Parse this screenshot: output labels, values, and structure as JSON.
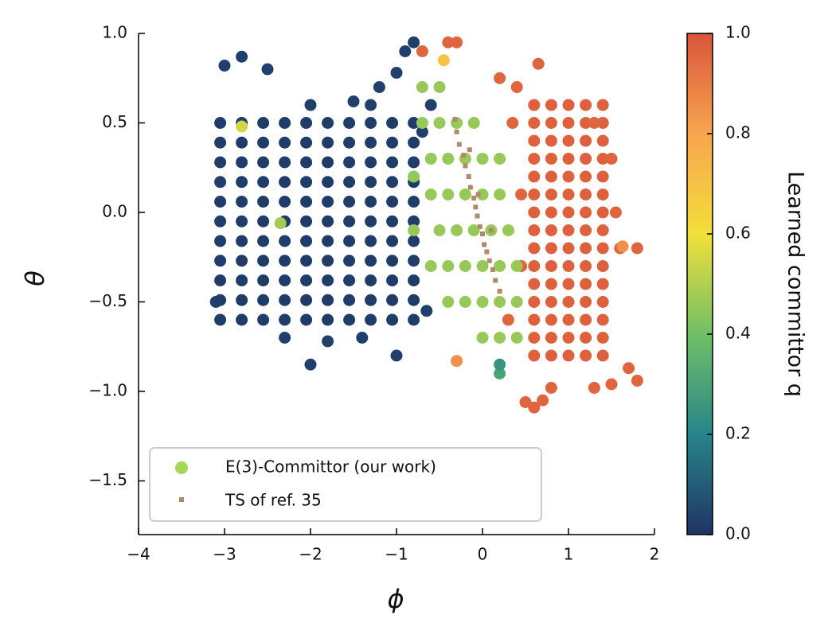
{
  "chart_data": {
    "type": "scatter",
    "x_label": "ϕ",
    "y_label": "θ",
    "colorbar_label": "Learned committor q",
    "xlim": [
      -4,
      2
    ],
    "ylim": [
      -1.8,
      1.0
    ],
    "clim": [
      0,
      1
    ],
    "xticks": [
      {
        "value": -4,
        "label": "−4"
      },
      {
        "value": -3,
        "label": "−3"
      },
      {
        "value": -2,
        "label": "−2"
      },
      {
        "value": -1,
        "label": "−1"
      },
      0,
      1,
      2
    ],
    "yticks": [
      {
        "value": -1.5,
        "label": "−1.5"
      },
      {
        "value": -1.0,
        "label": "−1.0"
      },
      {
        "value": -0.5,
        "label": "−0.5"
      },
      {
        "value": 0.0,
        "label": "0.0"
      },
      {
        "value": 0.5,
        "label": "0.5"
      },
      {
        "value": 1.0,
        "label": "1.0"
      }
    ],
    "cticks": [
      {
        "value": 0.0,
        "label": "0.0"
      },
      {
        "value": 0.2,
        "label": "0.2"
      },
      {
        "value": 0.4,
        "label": "0.4"
      },
      {
        "value": 0.6,
        "label": "0.6"
      },
      {
        "value": 0.8,
        "label": "0.8"
      },
      {
        "value": 1.0,
        "label": "1.0"
      }
    ],
    "colormap": [
      "#1f3465",
      "#27858a",
      "#6fc065",
      "#f2df3a",
      "#f8a54e",
      "#d9553b"
    ],
    "legend": "lower left",
    "series": [
      {
        "name": "E(3)-Committor (our work)",
        "color": "#a5d75a",
        "marker": "circle",
        "x": [
          -3.05,
          -2.8,
          -2.55,
          -2.3,
          -2.05,
          -1.8,
          -1.55,
          -1.3,
          -1.05,
          -0.8,
          -3.05,
          -2.8,
          -2.55,
          -2.3,
          -2.05,
          -1.8,
          -1.55,
          -1.3,
          -1.05,
          -0.8,
          -3.05,
          -2.8,
          -2.55,
          -2.3,
          -2.05,
          -1.8,
          -1.55,
          -1.3,
          -1.05,
          -0.8,
          -3.05,
          -2.8,
          -2.55,
          -2.3,
          -2.05,
          -1.8,
          -1.55,
          -1.3,
          -1.05,
          -0.8,
          -3.05,
          -2.8,
          -2.55,
          -2.3,
          -2.05,
          -1.8,
          -1.55,
          -1.3,
          -1.05,
          -0.8,
          -3.05,
          -2.8,
          -2.55,
          -2.3,
          -2.05,
          -1.8,
          -1.55,
          -1.3,
          -1.05,
          -0.8,
          -3.05,
          -2.8,
          -2.55,
          -2.3,
          -2.05,
          -1.8,
          -1.55,
          -1.3,
          -1.05,
          -0.8,
          -3.05,
          -2.8,
          -2.55,
          -2.3,
          -2.05,
          -1.8,
          -1.55,
          -1.3,
          -1.05,
          -0.8,
          -3.05,
          -2.8,
          -2.55,
          -2.3,
          -2.05,
          -1.8,
          -1.55,
          -1.3,
          -1.05,
          -0.8,
          -3.05,
          -2.8,
          -2.55,
          -2.3,
          -2.05,
          -1.8,
          -1.55,
          -1.3,
          -1.05,
          -0.8,
          -3.05,
          -2.8,
          -2.55,
          -2.3,
          -2.05,
          -1.8,
          -1.55,
          -1.3,
          -1.05,
          -0.8,
          -1.5,
          -1.2,
          -1.0,
          -0.9,
          -0.8,
          -1.3,
          -2.0,
          -2.3,
          -1.8,
          -1.4,
          -1.0,
          -3.1,
          -3.0,
          -2.8,
          -2.5,
          -2.0,
          -0.6,
          -0.7,
          -0.65,
          0.6,
          0.8,
          1.0,
          1.2,
          1.4,
          0.6,
          0.8,
          1.0,
          1.2,
          1.4,
          0.6,
          0.8,
          1.0,
          1.2,
          1.4,
          0.6,
          0.8,
          1.0,
          1.2,
          1.4,
          0.6,
          0.8,
          1.0,
          1.2,
          1.4,
          0.6,
          0.8,
          1.0,
          1.2,
          1.4,
          0.6,
          0.8,
          1.0,
          1.2,
          1.4,
          0.6,
          0.8,
          1.0,
          1.2,
          1.4,
          0.6,
          0.8,
          1.0,
          1.2,
          1.4,
          0.6,
          0.8,
          1.0,
          1.2,
          1.4,
          0.6,
          0.8,
          1.0,
          1.2,
          1.4,
          0.6,
          0.8,
          1.0,
          1.2,
          1.4,
          0.6,
          0.8,
          1.0,
          1.2,
          1.4,
          0.6,
          0.8,
          1.0,
          1.2,
          1.4,
          0.6,
          0.8,
          1.0,
          1.2,
          1.4,
          0.35,
          0.4,
          0.2,
          0.65,
          1.3,
          1.6,
          1.8,
          1.7,
          1.8,
          1.3,
          1.5,
          0.7,
          0.6,
          0.5,
          0.8,
          0.3,
          0.45,
          0.45,
          1.55,
          1.5,
          -0.4,
          -0.3,
          -0.7,
          -0.7,
          -0.5,
          -0.7,
          -0.5,
          -0.3,
          -0.1,
          -0.6,
          -0.4,
          -0.2,
          0.0,
          0.2,
          -0.6,
          -0.4,
          -0.2,
          0.0,
          0.2,
          -0.8,
          -0.5,
          -0.3,
          -0.1,
          0.1,
          0.3,
          -0.6,
          -0.4,
          -0.2,
          0.0,
          0.2,
          0.4,
          -0.4,
          -0.2,
          0.0,
          0.2,
          0.4,
          0.0,
          0.2,
          0.4,
          -2.35,
          -2.8,
          -0.8,
          -0.3,
          1.63,
          -0.45,
          0.2,
          0.2
        ],
        "y": [
          -0.6,
          -0.6,
          -0.6,
          -0.6,
          -0.6,
          -0.6,
          -0.6,
          -0.6,
          -0.6,
          -0.6,
          -0.49,
          -0.49,
          -0.49,
          -0.49,
          -0.49,
          -0.49,
          -0.49,
          -0.49,
          -0.49,
          -0.49,
          -0.38,
          -0.38,
          -0.38,
          -0.38,
          -0.38,
          -0.38,
          -0.38,
          -0.38,
          -0.38,
          -0.38,
          -0.27,
          -0.27,
          -0.27,
          -0.27,
          -0.27,
          -0.27,
          -0.27,
          -0.27,
          -0.27,
          -0.27,
          -0.16,
          -0.16,
          -0.16,
          -0.16,
          -0.16,
          -0.16,
          -0.16,
          -0.16,
          -0.16,
          -0.16,
          -0.05,
          -0.05,
          -0.05,
          -0.05,
          -0.05,
          -0.05,
          -0.05,
          -0.05,
          -0.05,
          -0.05,
          0.06,
          0.06,
          0.06,
          0.06,
          0.06,
          0.06,
          0.06,
          0.06,
          0.06,
          0.06,
          0.17,
          0.17,
          0.17,
          0.17,
          0.17,
          0.17,
          0.17,
          0.17,
          0.17,
          0.17,
          0.28,
          0.28,
          0.28,
          0.28,
          0.28,
          0.28,
          0.28,
          0.28,
          0.28,
          0.28,
          0.39,
          0.39,
          0.39,
          0.39,
          0.39,
          0.39,
          0.39,
          0.39,
          0.39,
          0.39,
          0.5,
          0.5,
          0.5,
          0.5,
          0.5,
          0.5,
          0.5,
          0.5,
          0.5,
          0.5,
          0.62,
          0.7,
          0.78,
          0.9,
          0.95,
          0.6,
          0.6,
          -0.7,
          -0.72,
          -0.7,
          -0.8,
          -0.5,
          0.82,
          0.87,
          0.8,
          -0.85,
          0.6,
          0.45,
          -0.55,
          -0.8,
          -0.8,
          -0.8,
          -0.8,
          -0.8,
          -0.7,
          -0.7,
          -0.7,
          -0.7,
          -0.7,
          -0.6,
          -0.6,
          -0.6,
          -0.6,
          -0.6,
          -0.5,
          -0.5,
          -0.5,
          -0.5,
          -0.5,
          -0.4,
          -0.4,
          -0.4,
          -0.4,
          -0.4,
          -0.3,
          -0.3,
          -0.3,
          -0.3,
          -0.3,
          -0.2,
          -0.2,
          -0.2,
          -0.2,
          -0.2,
          -0.1,
          -0.1,
          -0.1,
          -0.1,
          -0.1,
          0.0,
          0.0,
          0.0,
          0.0,
          0.0,
          0.1,
          0.1,
          0.1,
          0.1,
          0.1,
          0.2,
          0.2,
          0.2,
          0.2,
          0.2,
          0.3,
          0.3,
          0.3,
          0.3,
          0.3,
          0.4,
          0.4,
          0.4,
          0.4,
          0.4,
          0.5,
          0.5,
          0.5,
          0.5,
          0.5,
          0.6,
          0.6,
          0.6,
          0.6,
          0.6,
          0.5,
          0.7,
          0.75,
          0.83,
          0.5,
          -0.2,
          -0.2,
          -0.87,
          -0.94,
          -0.98,
          -0.96,
          -1.05,
          -1.09,
          -1.06,
          -0.98,
          -0.6,
          0.1,
          -0.3,
          0.0,
          0.3,
          0.95,
          0.95,
          0.9,
          0.7,
          0.7,
          0.5,
          0.5,
          0.5,
          0.5,
          0.3,
          0.3,
          0.3,
          0.3,
          0.3,
          0.1,
          0.1,
          0.1,
          0.1,
          0.1,
          -0.1,
          -0.1,
          -0.1,
          -0.1,
          -0.1,
          -0.1,
          -0.3,
          -0.3,
          -0.3,
          -0.3,
          -0.3,
          -0.3,
          -0.5,
          -0.5,
          -0.5,
          -0.5,
          -0.5,
          -0.7,
          -0.7,
          -0.7,
          -0.06,
          0.48,
          0.2,
          -0.83,
          -0.19,
          0.85,
          -0.9,
          -0.85
        ],
        "c": [
          0.02,
          0.02,
          0.02,
          0.02,
          0.02,
          0.02,
          0.02,
          0.02,
          0.02,
          0.02,
          0.02,
          0.02,
          0.02,
          0.02,
          0.02,
          0.02,
          0.02,
          0.02,
          0.02,
          0.02,
          0.02,
          0.02,
          0.02,
          0.02,
          0.02,
          0.02,
          0.02,
          0.02,
          0.02,
          0.02,
          0.02,
          0.02,
          0.02,
          0.02,
          0.02,
          0.02,
          0.02,
          0.02,
          0.02,
          0.02,
          0.02,
          0.02,
          0.02,
          0.02,
          0.02,
          0.02,
          0.02,
          0.02,
          0.02,
          0.02,
          0.02,
          0.02,
          0.02,
          0.02,
          0.02,
          0.02,
          0.02,
          0.02,
          0.02,
          0.02,
          0.02,
          0.02,
          0.02,
          0.02,
          0.02,
          0.02,
          0.02,
          0.02,
          0.02,
          0.02,
          0.02,
          0.02,
          0.02,
          0.02,
          0.02,
          0.02,
          0.02,
          0.02,
          0.02,
          0.02,
          0.02,
          0.02,
          0.02,
          0.02,
          0.02,
          0.02,
          0.02,
          0.02,
          0.02,
          0.02,
          0.02,
          0.02,
          0.02,
          0.02,
          0.02,
          0.02,
          0.02,
          0.02,
          0.02,
          0.02,
          0.02,
          0.02,
          0.02,
          0.02,
          0.02,
          0.02,
          0.02,
          0.02,
          0.02,
          0.02,
          0.03,
          0.03,
          0.03,
          0.03,
          0.03,
          0.03,
          0.03,
          0.03,
          0.03,
          0.03,
          0.03,
          0.03,
          0.03,
          0.03,
          0.03,
          0.03,
          0.03,
          0.03,
          0.03,
          0.97,
          0.97,
          0.97,
          0.97,
          0.97,
          0.97,
          0.97,
          0.97,
          0.97,
          0.97,
          0.97,
          0.97,
          0.97,
          0.97,
          0.97,
          0.97,
          0.97,
          0.97,
          0.97,
          0.97,
          0.97,
          0.97,
          0.97,
          0.97,
          0.97,
          0.97,
          0.97,
          0.97,
          0.97,
          0.97,
          0.97,
          0.97,
          0.97,
          0.97,
          0.97,
          0.97,
          0.97,
          0.97,
          0.97,
          0.97,
          0.97,
          0.97,
          0.97,
          0.97,
          0.97,
          0.97,
          0.97,
          0.97,
          0.97,
          0.97,
          0.97,
          0.97,
          0.97,
          0.97,
          0.97,
          0.97,
          0.97,
          0.97,
          0.97,
          0.97,
          0.97,
          0.97,
          0.97,
          0.97,
          0.97,
          0.97,
          0.97,
          0.97,
          0.97,
          0.97,
          0.97,
          0.97,
          0.97,
          0.97,
          0.97,
          0.96,
          0.96,
          0.96,
          0.96,
          0.96,
          0.96,
          0.96,
          0.96,
          0.96,
          0.96,
          0.96,
          0.96,
          0.96,
          0.96,
          0.96,
          0.96,
          0.96,
          0.96,
          0.96,
          0.96,
          0.96,
          0.96,
          0.96,
          0.46,
          0.46,
          0.46,
          0.46,
          0.46,
          0.46,
          0.46,
          0.46,
          0.46,
          0.46,
          0.46,
          0.46,
          0.46,
          0.46,
          0.46,
          0.46,
          0.46,
          0.46,
          0.46,
          0.46,
          0.46,
          0.46,
          0.46,
          0.46,
          0.46,
          0.46,
          0.46,
          0.46,
          0.46,
          0.46,
          0.46,
          0.46,
          0.46,
          0.46,
          0.46,
          0.46,
          0.48,
          0.55,
          0.45,
          0.85,
          0.85,
          0.7,
          0.3,
          0.25
        ]
      },
      {
        "name": "TS of ref. 35",
        "color": "#b08968",
        "marker": "square",
        "x": [
          -0.32,
          -0.3,
          -0.27,
          -0.22,
          -0.2,
          -0.16,
          -0.14,
          -0.1,
          -0.08,
          -0.06,
          -0.03,
          0.0,
          0.02,
          0.05,
          0.08,
          0.12,
          0.15,
          0.2,
          -0.15,
          -0.05,
          0.1
        ],
        "y": [
          0.52,
          0.45,
          0.38,
          0.32,
          0.26,
          0.2,
          0.14,
          0.08,
          0.03,
          -0.02,
          -0.08,
          -0.12,
          -0.18,
          -0.22,
          -0.27,
          -0.32,
          -0.38,
          -0.44,
          0.35,
          0.1,
          -0.1
        ]
      }
    ]
  }
}
